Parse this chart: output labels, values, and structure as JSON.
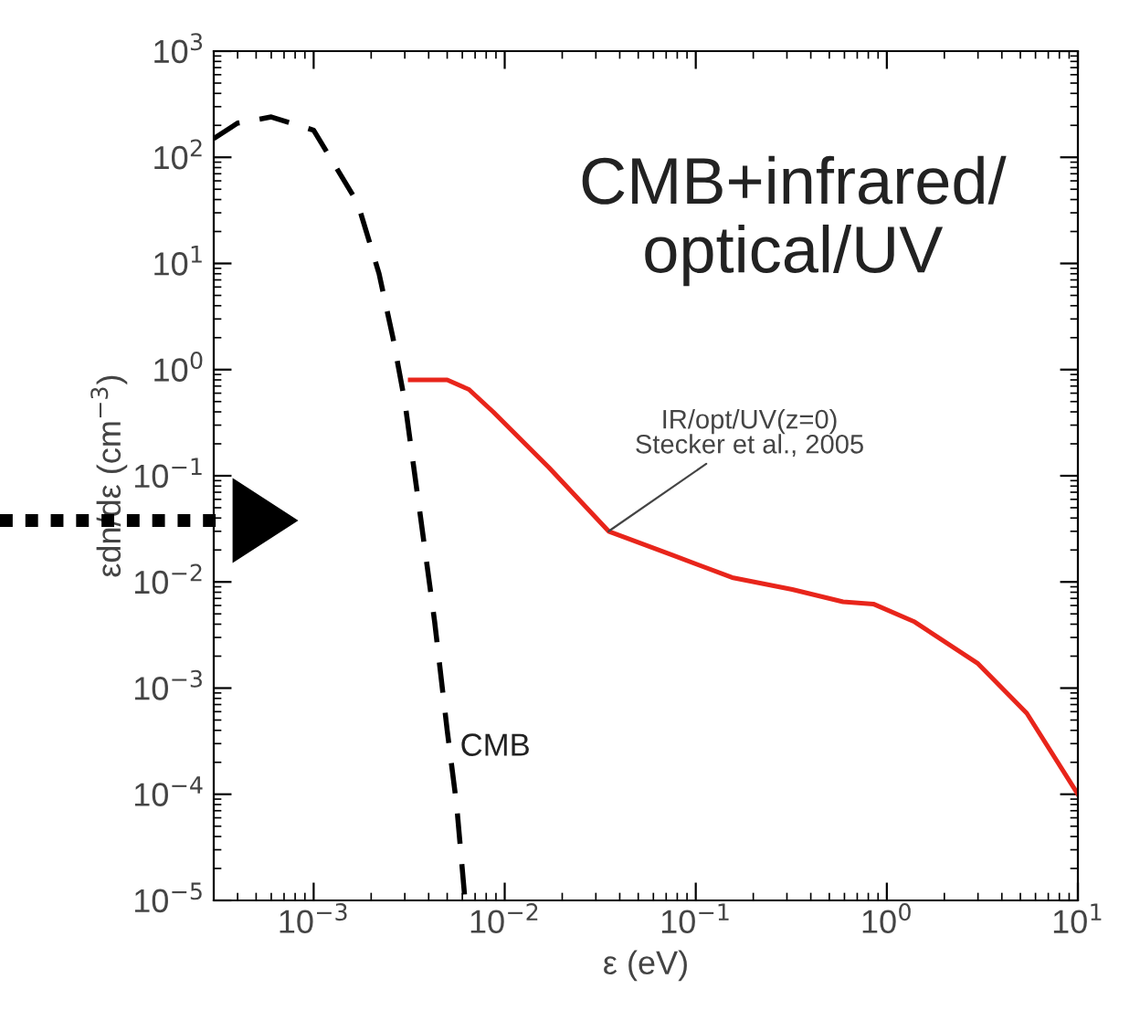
{
  "chart_data": {
    "type": "line",
    "xlabel": "ε (eV)",
    "ylabel": "εdn/dε (cm$^{−3}$)",
    "log": "xy",
    "grid": false,
    "legend": false,
    "marker": "none",
    "xlim": [
      0.0003,
      10
    ],
    "ylim": [
      1e-05,
      1000
    ],
    "xticks": [
      {
        "value": 0.001,
        "label": "10$^{−3}$"
      },
      {
        "value": 0.01,
        "label": "10$^{−2}$"
      },
      {
        "value": 0.1,
        "label": "10$^{−1}$"
      },
      {
        "value": 1,
        "label": "10$^{0}$"
      },
      {
        "value": 10,
        "label": "10$^{1}$"
      }
    ],
    "yticks": [
      {
        "value": 1e-05,
        "label": "10$^{−5}$"
      },
      {
        "value": 0.0001,
        "label": "10$^{−4}$"
      },
      {
        "value": 0.001,
        "label": "10$^{−3}$"
      },
      {
        "value": 0.01,
        "label": "10$^{−2}$"
      },
      {
        "value": 0.1,
        "label": "10$^{−1}$"
      },
      {
        "value": 1,
        "label": "10$^{0}$"
      },
      {
        "value": 10,
        "label": "10$^{1}$"
      },
      {
        "value": 100,
        "label": "10$^{2}$"
      },
      {
        "value": 1000,
        "label": "10$^{3}$"
      }
    ],
    "series": [
      {
        "color": "#000000",
        "line_style": "dashed",
        "x": [
          0.0003,
          0.0004,
          0.0006,
          0.001,
          0.0017,
          0.0022,
          0.0026,
          0.003,
          0.0036,
          0.0043,
          0.005,
          0.0056,
          0.0062
        ],
        "values": [
          150,
          210,
          240,
          180,
          37,
          8,
          2,
          0.5,
          0.045,
          0.0042,
          0.0004,
          8e-05,
          1e-05
        ]
      },
      {
        "color": "#e8251b",
        "line_style": "solid",
        "x": [
          0.0032,
          0.005,
          0.0065,
          0.0087,
          0.017,
          0.035,
          0.075,
          0.155,
          0.32,
          0.59,
          0.85,
          1.4,
          3,
          5.4,
          10
        ],
        "values": [
          0.8,
          0.8,
          0.65,
          0.4,
          0.12,
          0.03,
          0.018,
          0.011,
          0.0085,
          0.0065,
          0.0062,
          0.0042,
          0.0017,
          0.00058,
          0.0001
        ]
      }
    ],
    "annotations": [
      "CMB+infrared/\noptical/UV",
      {
        "text": "IR/opt/UV(z=0)\nStecker et al., 2005",
        "x": 0.035,
        "y": 0.03
      },
      "CMB"
    ]
  }
}
